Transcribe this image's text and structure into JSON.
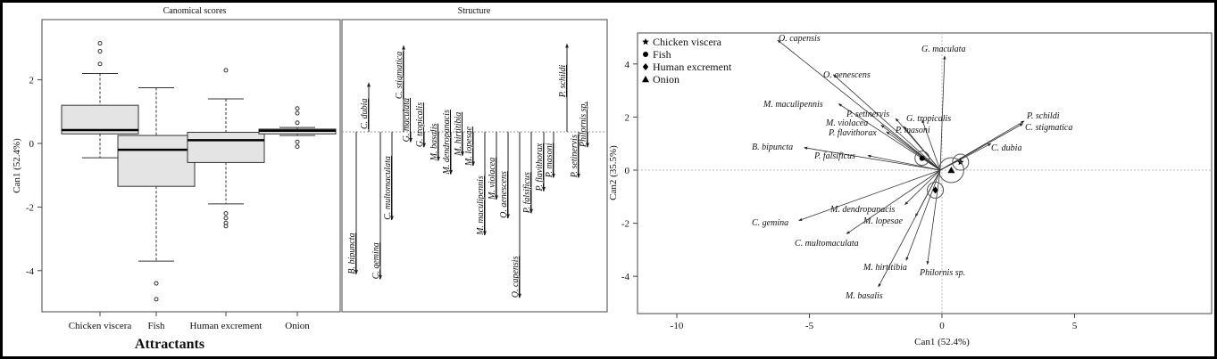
{
  "chart_data": [
    {
      "type": "box",
      "title": "Canomical scores",
      "xlabel": "Attractants",
      "ylabel": "Can1 (52.4%)",
      "ylim": [
        -5.3,
        3.9
      ],
      "yticks": [
        2,
        0,
        -2,
        -4
      ],
      "categories": [
        "Chicken viscera",
        "Fish",
        "Human excrement",
        "Onion"
      ],
      "boxes": [
        {
          "q1": 0.3,
          "median": 0.42,
          "q3": 1.2,
          "whisker_low": -0.45,
          "whisker_high": 2.2,
          "outliers": [
            2.5,
            2.9,
            3.15
          ]
        },
        {
          "q1": -1.35,
          "median": -0.2,
          "q3": 0.25,
          "whisker_low": -3.7,
          "whisker_high": 1.75,
          "outliers": [
            -4.4,
            -4.9
          ]
        },
        {
          "q1": -0.6,
          "median": 0.1,
          "q3": 0.35,
          "whisker_low": -1.9,
          "whisker_high": 1.4,
          "outliers": [
            2.3,
            -2.2,
            -2.35,
            -2.5,
            -2.6
          ]
        },
        {
          "q1": 0.3,
          "median": 0.4,
          "q3": 0.45,
          "whisker_low": 0.25,
          "whisker_high": 0.5,
          "outliers": [
            1.1,
            0.95,
            0.65,
            0.05,
            -0.1
          ]
        }
      ]
    },
    {
      "type": "bar",
      "title": "Structure",
      "orientation": "vertical-segments",
      "species": [
        "B. bipuncta",
        "C. dubia",
        "C. gemina",
        "C. multomaculata",
        "C. stigmatica",
        "G. maculata",
        "G. tropicalis",
        "M. basalis",
        "M. dendropanacis",
        "M. hirtitibia",
        "M. lopesae",
        "M. maculipennis",
        "M. violacea",
        "O. aenescens",
        "O. capensis",
        "P. falsificus",
        "P. flavithorax",
        "P. masoni",
        "P. schildi",
        "P. setinervis",
        "Philornis sp."
      ],
      "values": [
        -0.84,
        0.29,
        -0.87,
        -0.52,
        0.51,
        -0.06,
        -0.09,
        -0.17,
        -0.25,
        -0.14,
        -0.2,
        -0.61,
        -0.4,
        -0.51,
        -0.98,
        -0.48,
        -0.35,
        -0.27,
        0.52,
        -0.27,
        -0.09
      ]
    },
    {
      "type": "scatter",
      "subtype": "biplot",
      "xlabel": "Can1 (52.4%)",
      "ylabel": "Can2 (35.5%)",
      "xticks": [
        -10,
        -5,
        0,
        5
      ],
      "yticks": [
        4,
        2,
        0,
        -2,
        -4
      ],
      "xlim": [
        -11.3,
        10.6
      ],
      "ylim": [
        -5.4,
        5.2
      ],
      "legend_position": "top-left",
      "groups": [
        {
          "name": "Chicken viscera",
          "marker": "star",
          "x": 0.7,
          "y": 0.3
        },
        {
          "name": "Fish",
          "marker": "circle",
          "x": -0.75,
          "y": 0.45
        },
        {
          "name": "Human excrement",
          "marker": "diamond",
          "x": -0.25,
          "y": -0.75
        },
        {
          "name": "Onion",
          "marker": "triangle",
          "x": 0.35,
          "y": 0.0
        }
      ],
      "vectors": [
        {
          "name": "O. capensis",
          "x": -6.2,
          "y": 4.9
        },
        {
          "name": "O. aenescens",
          "x": -4.1,
          "y": 3.6
        },
        {
          "name": "G. maculata",
          "x": 0.1,
          "y": 4.3
        },
        {
          "name": "M. maculipennis",
          "x": -3.9,
          "y": 2.5
        },
        {
          "name": "P. setinervis",
          "x": -1.75,
          "y": 1.95
        },
        {
          "name": "G. tropicalis",
          "x": -0.75,
          "y": 1.9
        },
        {
          "name": "M. violacea",
          "x": -2.3,
          "y": 1.7
        },
        {
          "name": "P. masoni",
          "x": -1.45,
          "y": 1.65
        },
        {
          "name": "P. flavithorax",
          "x": -2.1,
          "y": 1.45
        },
        {
          "name": "B. bipuncta",
          "x": -5.2,
          "y": 0.85
        },
        {
          "name": "P. falsificus",
          "x": -2.8,
          "y": 0.55
        },
        {
          "name": "C. gemina",
          "x": -5.4,
          "y": -1.9
        },
        {
          "name": "M. dendropanacis",
          "x": -1.4,
          "y": -1.3
        },
        {
          "name": "M. lopesae",
          "x": -1.0,
          "y": -1.75
        },
        {
          "name": "C. multomaculata",
          "x": -3.6,
          "y": -2.4
        },
        {
          "name": "M. hirtitibia",
          "x": -1.35,
          "y": -3.4
        },
        {
          "name": "Philornis sp.",
          "x": -0.55,
          "y": -3.55
        },
        {
          "name": "M. basalis",
          "x": -2.4,
          "y": -4.4
        },
        {
          "name": "C. dubia",
          "x": 1.85,
          "y": 1.0
        },
        {
          "name": "P. schildi",
          "x": 3.1,
          "y": 1.85
        },
        {
          "name": "C. stigmatica",
          "x": 3.05,
          "y": 1.75
        }
      ]
    }
  ]
}
